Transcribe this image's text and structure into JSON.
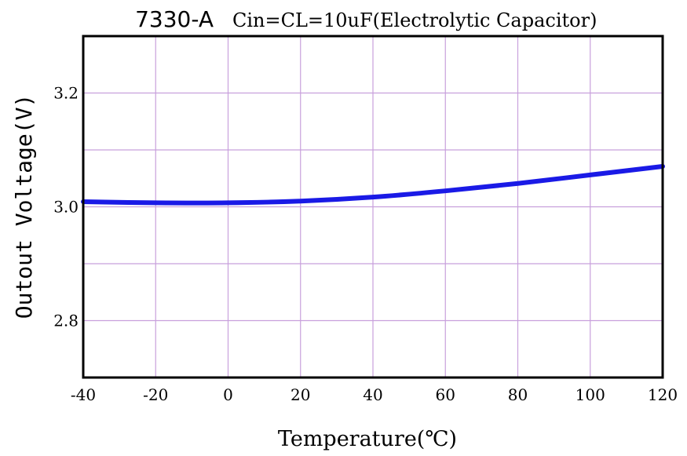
{
  "chart_data": {
    "type": "line",
    "title": "7330-A",
    "subtitle": "Cin=CL=10uF(Electrolytic Capacitor)",
    "xlabel": "Temperature(℃)",
    "ylabel": "Outout Voltage(V)",
    "xlim": [
      -40,
      120
    ],
    "ylim": [
      2.7,
      3.3
    ],
    "x_ticks": [
      -40,
      -20,
      0,
      20,
      40,
      60,
      80,
      100,
      120
    ],
    "x_tick_labels": [
      "-40",
      "-20",
      "0",
      "20",
      "40",
      "60",
      "80",
      "100",
      "120"
    ],
    "y_ticks": [
      2.8,
      3.0,
      3.2
    ],
    "y_tick_labels": [
      "2.8",
      "3.0",
      "3.2"
    ],
    "grid": true,
    "grid_color": "#c8a0dc",
    "series": [
      {
        "color": "#1a1ae6",
        "x": [
          -40,
          -20,
          0,
          20,
          40,
          60,
          80,
          100,
          120
        ],
        "y": [
          3.009,
          3.007,
          3.007,
          3.01,
          3.017,
          3.028,
          3.041,
          3.056,
          3.071
        ]
      }
    ]
  }
}
